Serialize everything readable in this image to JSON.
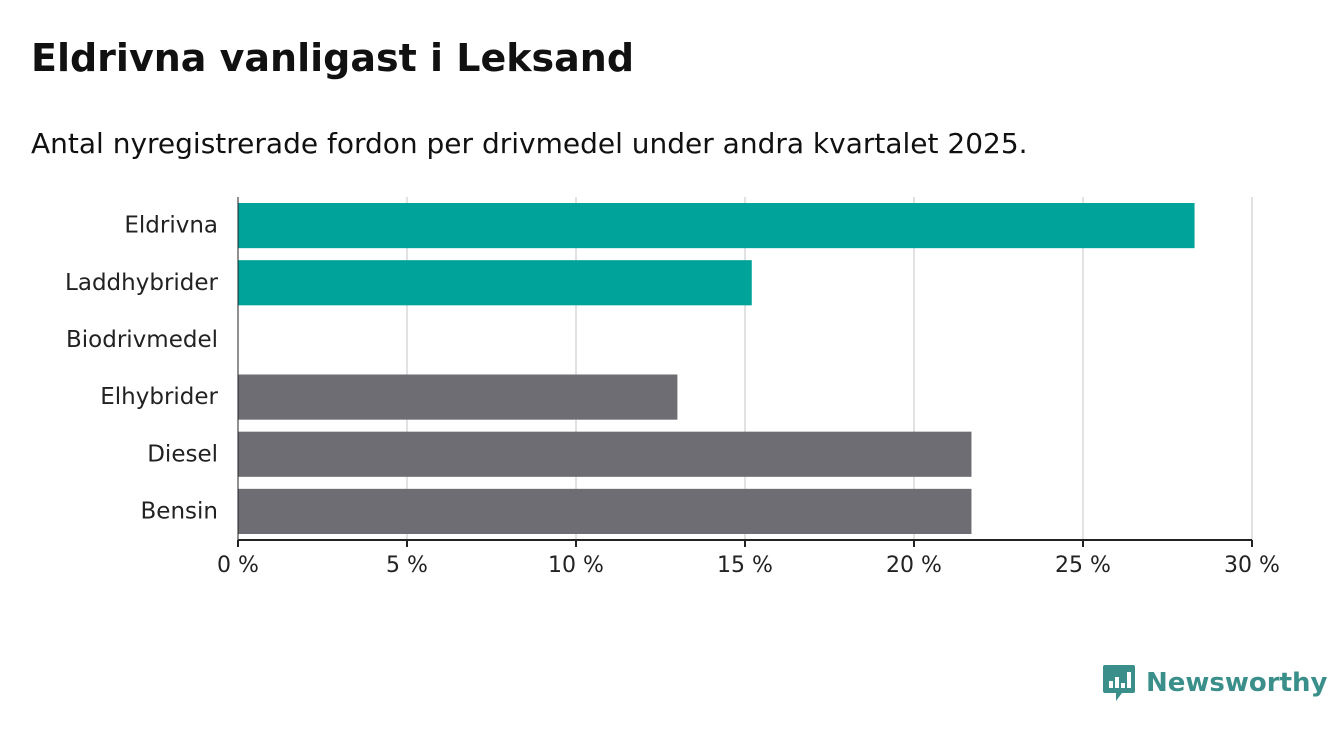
{
  "title": "Eldrivna vanligast i Leksand",
  "subtitle": "Antal nyregistrerade fordon per drivmedel under andra kvartalet 2025.",
  "brand": {
    "name": "Newsworthy",
    "icon": "newsworthy-bar-chart-logo-icon",
    "color": "#3a8f8a"
  },
  "chart_data": {
    "type": "bar",
    "orientation": "horizontal",
    "categories": [
      "Eldrivna",
      "Laddhybrider",
      "Biodrivmedel",
      "Elhybrider",
      "Diesel",
      "Bensin"
    ],
    "values": [
      28.3,
      15.2,
      0,
      13.0,
      21.7,
      21.7
    ],
    "colors": [
      "#00a39a",
      "#00a39a",
      "#00a39a",
      "#6e6d73",
      "#6e6d73",
      "#6e6d73"
    ],
    "xlim": [
      0,
      30
    ],
    "xticks": [
      0,
      5,
      10,
      15,
      20,
      25,
      30
    ],
    "xtick_labels": [
      "0 %",
      "5 %",
      "10 %",
      "15 %",
      "20 %",
      "25 %",
      "30 %"
    ],
    "xlabel": "",
    "ylabel": "",
    "grid": true,
    "legend": "none"
  }
}
